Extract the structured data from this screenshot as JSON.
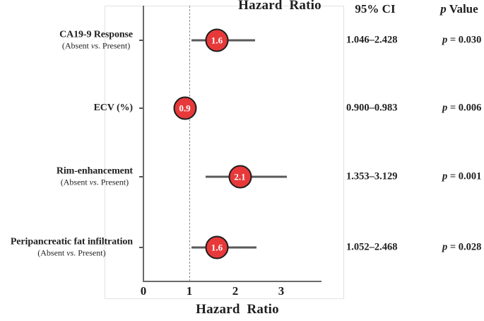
{
  "figure": {
    "title_top": "Hazard  Ratio",
    "ci_header": "95% CI",
    "p_header": {
      "italic": "p",
      "rest": " Value"
    },
    "x_axis_label": "Hazard  Ratio"
  },
  "chart_data": {
    "type": "forest",
    "title": "Hazard  Ratio",
    "xlabel": "Hazard  Ratio",
    "x_ticks": [
      0,
      1,
      2,
      3
    ],
    "xlim": [
      0,
      3.9
    ],
    "reference_line_x": 1,
    "grid": false,
    "legend_position": "none",
    "rows": [
      {
        "label": "CA19-9 Response",
        "sublabel": {
          "pre": "(Absent ",
          "italic": "vs",
          "post": ". Present)"
        },
        "hazard_ratio": 1.6,
        "marker_text": "1.6",
        "ci_low": 1.046,
        "ci_high": 2.428,
        "ci_text": "1.046–2.428",
        "p_value": {
          "italic": "p",
          "rest": " = 0.030"
        }
      },
      {
        "label": "ECV (%)",
        "sublabel": null,
        "hazard_ratio": 0.9,
        "marker_text": "0.9",
        "ci_low": 0.9,
        "ci_high": 0.983,
        "ci_text": "0.900–0.983",
        "p_value": {
          "italic": "p",
          "rest": " = 0.006"
        }
      },
      {
        "label": "Rim-enhancement",
        "sublabel": {
          "pre": "(Absent ",
          "italic": "vs",
          "post": ". Present)"
        },
        "hazard_ratio": 2.1,
        "marker_text": "2.1",
        "ci_low": 1.353,
        "ci_high": 3.129,
        "ci_text": "1.353–3.129",
        "p_value": {
          "italic": "p",
          "rest": " = 0.001"
        }
      },
      {
        "label": "Peripancreatic fat infiltration",
        "sublabel": {
          "pre": "(Absent ",
          "italic": "vs",
          "post": ". Present)"
        },
        "hazard_ratio": 1.6,
        "marker_text": "1.6",
        "ci_low": 1.052,
        "ci_high": 2.468,
        "ci_text": "1.052–2.468",
        "p_value": {
          "italic": "p",
          "rest": " = 0.028"
        }
      }
    ],
    "colors": {
      "marker_fill": "#e8393a",
      "marker_border": "#1c1c1c",
      "marker_text": "#ffffff",
      "whisker": "#595959",
      "axis": "#6a6a6a",
      "reference_dash": "#8a8a8a",
      "panel_border": "#e2e2e2",
      "text": "#1f1f1f"
    }
  }
}
